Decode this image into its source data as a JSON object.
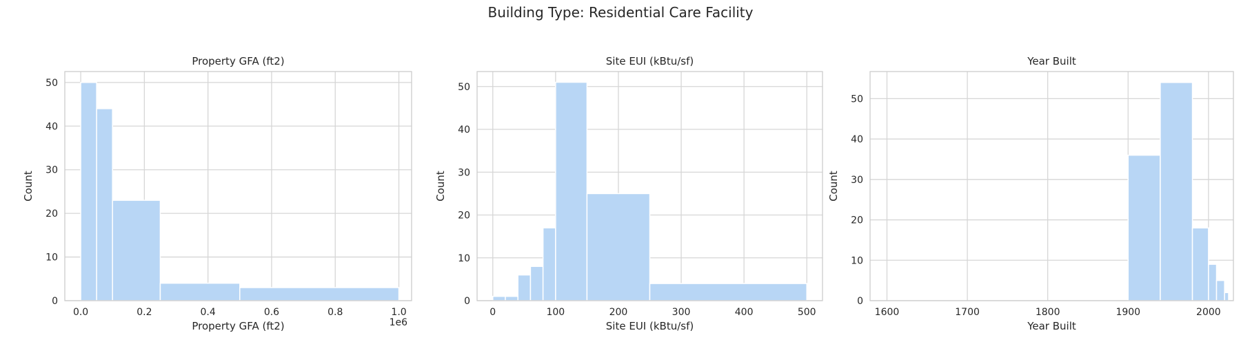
{
  "suptitle": "Building Type: Residential Care Facility",
  "colors": {
    "bar": "#b8d6f5",
    "grid": "#d6d6d6",
    "frame": "#cccccc"
  },
  "chart_data": [
    {
      "type": "bar",
      "title": "Property GFA (ft2)",
      "xlabel": "Property GFA (ft2)",
      "ylabel": "Count",
      "offset_label": "1e6",
      "xlim": [
        -0.05,
        1.04
      ],
      "ylim": [
        0,
        52.5
      ],
      "xticks": [
        0.0,
        0.2,
        0.4,
        0.6,
        0.8,
        1.0
      ],
      "xtick_labels": [
        "0.0",
        "0.2",
        "0.4",
        "0.6",
        "0.8",
        "1.0"
      ],
      "yticks": [
        0,
        10,
        20,
        30,
        40,
        50
      ],
      "bins": [
        {
          "x0": 0.0,
          "x1": 0.05,
          "count": 50
        },
        {
          "x0": 0.05,
          "x1": 0.1,
          "count": 44
        },
        {
          "x0": 0.1,
          "x1": 0.25,
          "count": 23
        },
        {
          "x0": 0.25,
          "x1": 0.5,
          "count": 4
        },
        {
          "x0": 0.5,
          "x1": 1.0,
          "count": 3
        }
      ]
    },
    {
      "type": "bar",
      "title": "Site EUI (kBtu/sf)",
      "xlabel": "Site EUI (kBtu/sf)",
      "ylabel": "Count",
      "xlim": [
        -25,
        525
      ],
      "ylim": [
        0,
        53.5
      ],
      "xticks": [
        0,
        100,
        200,
        300,
        400,
        500
      ],
      "xtick_labels": [
        "0",
        "100",
        "200",
        "300",
        "400",
        "500"
      ],
      "yticks": [
        0,
        10,
        20,
        30,
        40,
        50
      ],
      "bins": [
        {
          "x0": 0,
          "x1": 20,
          "count": 1
        },
        {
          "x0": 20,
          "x1": 40,
          "count": 1
        },
        {
          "x0": 40,
          "x1": 60,
          "count": 6
        },
        {
          "x0": 60,
          "x1": 80,
          "count": 8
        },
        {
          "x0": 80,
          "x1": 100,
          "count": 17
        },
        {
          "x0": 100,
          "x1": 150,
          "count": 51
        },
        {
          "x0": 150,
          "x1": 250,
          "count": 25
        },
        {
          "x0": 250,
          "x1": 500,
          "count": 4
        }
      ]
    },
    {
      "type": "bar",
      "title": "Year Built",
      "xlabel": "Year Built",
      "ylabel": "Count",
      "xlim": [
        1579,
        2031
      ],
      "ylim": [
        0,
        56.7
      ],
      "xticks": [
        1600,
        1700,
        1800,
        1900,
        2000
      ],
      "xtick_labels": [
        "1600",
        "1700",
        "1800",
        "1900",
        "2000"
      ],
      "yticks": [
        0,
        10,
        20,
        30,
        40,
        50
      ],
      "bins": [
        {
          "x0": 1600,
          "x1": 1900,
          "count": 0
        },
        {
          "x0": 1900,
          "x1": 1940,
          "count": 36
        },
        {
          "x0": 1940,
          "x1": 1980,
          "count": 54
        },
        {
          "x0": 1980,
          "x1": 2000,
          "count": 18
        },
        {
          "x0": 2000,
          "x1": 2010,
          "count": 9
        },
        {
          "x0": 2010,
          "x1": 2020,
          "count": 5
        },
        {
          "x0": 2020,
          "x1": 2025,
          "count": 2
        }
      ]
    }
  ]
}
